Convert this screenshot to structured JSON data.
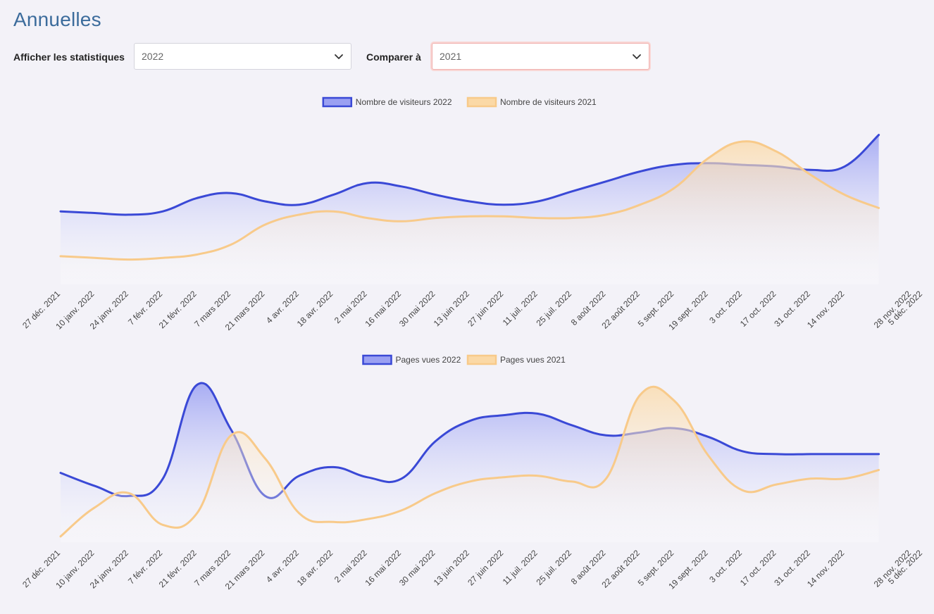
{
  "header": {
    "title": "Annuelles"
  },
  "filters": {
    "show_label": "Afficher les statistiques",
    "show_value": "2022",
    "compare_label": "Comparer à",
    "compare_value": "2021"
  },
  "colors": {
    "series_2022": "#3a49d6",
    "series_2022_fill": "#9aa0f2",
    "series_2021": "#f8ca8a",
    "series_2021_fill": "#fbd9a6"
  },
  "chart_data": [
    {
      "type": "area",
      "categories": [
        "27 déc. 2021",
        "10 janv. 2022",
        "24 janv. 2022",
        "7 févr. 2022",
        "21 févr. 2022",
        "7 mars 2022",
        "21 mars 2022",
        "4 avr. 2022",
        "18 avr. 2022",
        "2 mai 2022",
        "16 mai 2022",
        "30 mai 2022",
        "13 juin 2022",
        "27 juin 2022",
        "11 juil. 2022",
        "25 juil. 2022",
        "8 août 2022",
        "22 août 2022",
        "5 sept. 2022",
        "19 sept. 2022",
        "3 oct. 2022",
        "17 oct. 2022",
        "31 oct. 2022",
        "14 nov. 2022",
        "28 nov. 2022",
        "5 déc. 2022"
      ],
      "series": [
        {
          "name": "Nombre de visiteurs 2022",
          "x": [
            0,
            1,
            2,
            3,
            4,
            5,
            6,
            7,
            8,
            9,
            10,
            11,
            12,
            13,
            14,
            15,
            16,
            17,
            18,
            19,
            20,
            21,
            22,
            23,
            24
          ],
          "values": [
            22,
            21.5,
            21,
            22,
            26,
            27.5,
            25,
            24,
            27,
            30.5,
            29.5,
            27,
            25,
            24,
            25,
            28,
            31,
            34,
            36,
            36.5,
            36,
            35.5,
            34.5,
            35.5,
            45
          ]
        },
        {
          "name": "Nombre de visiteurs 2021",
          "x": [
            0,
            1,
            2,
            3,
            4,
            5,
            6,
            7,
            8,
            9,
            10,
            11,
            12,
            13,
            14,
            15,
            16,
            17,
            18,
            19,
            20,
            21,
            22,
            23,
            24
          ],
          "values": [
            8.5,
            8,
            7.5,
            8,
            9,
            12,
            18,
            21,
            22,
            20,
            19,
            20,
            20.5,
            20.5,
            20,
            20,
            21,
            24,
            29,
            38,
            43,
            40,
            33,
            27,
            23
          ]
        }
      ],
      "legend": "top",
      "ylim": [
        0,
        50
      ]
    },
    {
      "type": "area",
      "categories": [
        "27 déc. 2021",
        "10 janv. 2022",
        "24 janv. 2022",
        "7 févr. 2022",
        "21 févr. 2022",
        "7 mars 2022",
        "21 mars 2022",
        "4 avr. 2022",
        "18 avr. 2022",
        "2 mai 2022",
        "16 mai 2022",
        "30 mai 2022",
        "13 juin 2022",
        "27 juin 2022",
        "11 juil. 2022",
        "25 juil. 2022",
        "8 août 2022",
        "22 août 2022",
        "5 sept. 2022",
        "19 sept. 2022",
        "3 oct. 2022",
        "17 oct. 2022",
        "31 oct. 2022",
        "14 nov. 2022",
        "28 nov. 2022",
        "5 déc. 2022"
      ],
      "series": [
        {
          "name": "Pages vues 2022",
          "x": [
            0,
            1,
            2,
            3,
            4,
            5,
            6,
            7,
            8,
            9,
            10,
            11,
            12,
            13,
            14,
            15,
            16,
            17,
            18,
            19,
            20,
            21,
            22,
            23,
            24
          ],
          "values": [
            24,
            19.5,
            16,
            22,
            54.5,
            39,
            16,
            23,
            26,
            22.5,
            22,
            35,
            42,
            44,
            44.5,
            40.5,
            37,
            38,
            39.5,
            36.5,
            31.5,
            30.5,
            30.5,
            30.5,
            30.5
          ]
        },
        {
          "name": "Pages vues 2021",
          "x": [
            0,
            1,
            2,
            3,
            4,
            5,
            6,
            7,
            8,
            9,
            10,
            11,
            12,
            13,
            14,
            15,
            16,
            17,
            18,
            19,
            20,
            21,
            22,
            23,
            24
          ],
          "values": [
            2,
            12,
            17,
            6,
            10,
            37,
            29,
            10,
            7,
            8,
            11,
            17,
            21,
            22.5,
            23,
            21,
            22,
            51,
            49,
            30,
            18,
            20,
            22,
            22,
            25
          ]
        }
      ],
      "legend": "top",
      "ylim": [
        0,
        60
      ]
    }
  ]
}
